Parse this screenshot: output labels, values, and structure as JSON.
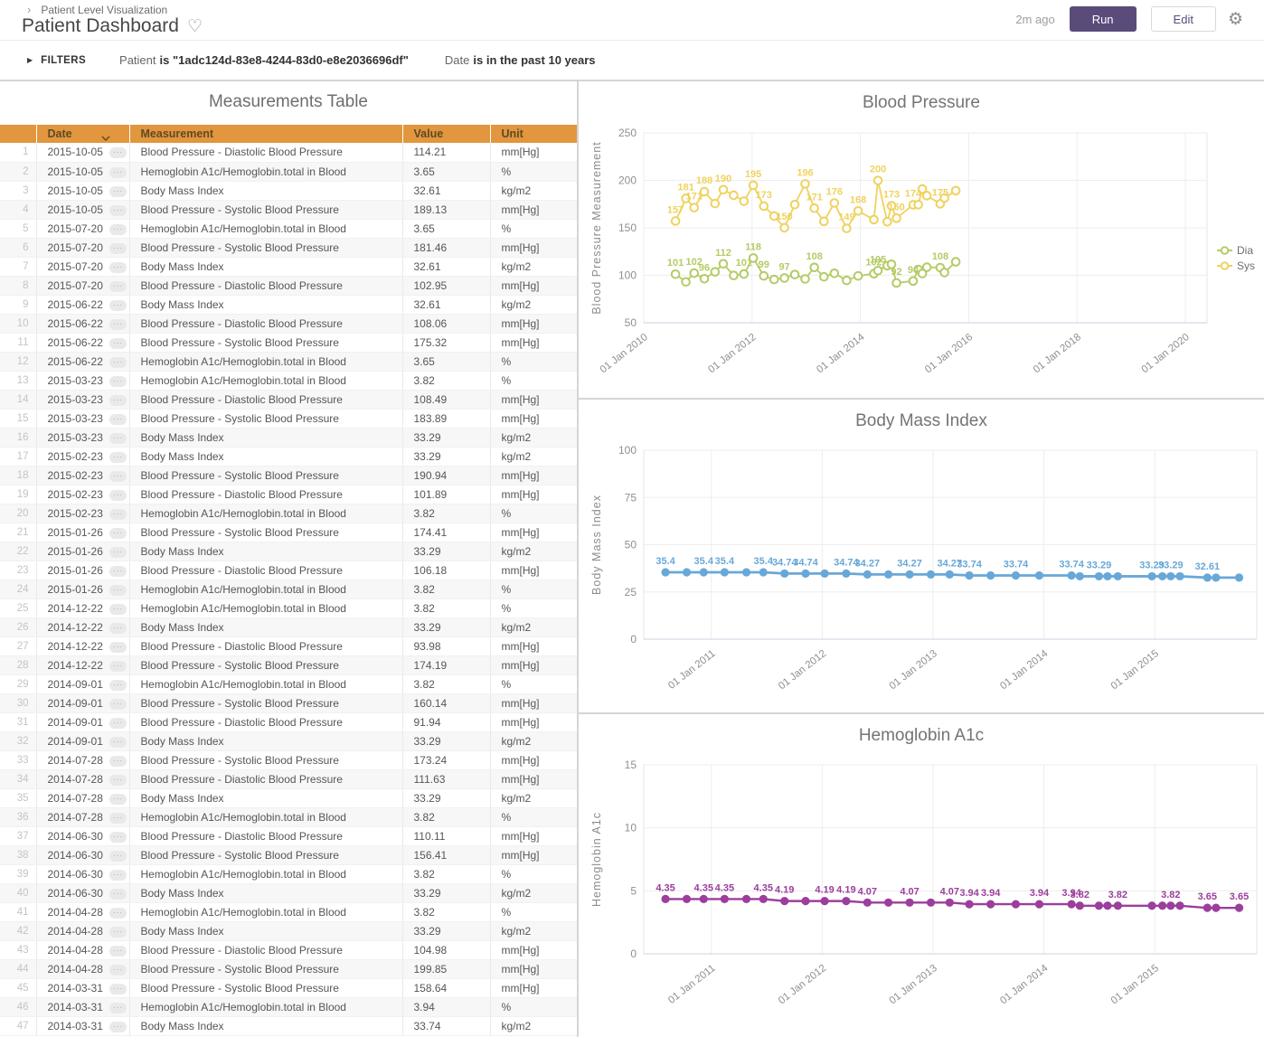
{
  "header": {
    "breadcrumb": "Patient Level Visualization",
    "title": "Patient Dashboard",
    "last_run": "2m ago",
    "run_label": "Run",
    "edit_label": "Edit"
  },
  "icons": {
    "breadcrumb_chevron": "›",
    "heart": "♡",
    "gear": "⚙",
    "filters_arrow": "▶",
    "row_menu": "···"
  },
  "filters": {
    "label": "FILTERS",
    "patient_label": "Patient",
    "patient_value": "is \"1adc124d-83e8-4244-83d0-e8e2036696df\"",
    "date_label": "Date",
    "date_value": "is in the past 10 years"
  },
  "colors": {
    "accent_purple": "#5A4B7B",
    "table_header_orange": "#E2963D",
    "sys_yellow": "#EFD25E",
    "dia_green": "#B4CB66",
    "bmi_blue": "#68A8D8",
    "a1c_purple": "#9C3E9C"
  },
  "table": {
    "title": "Measurements Table",
    "columns": [
      "Date",
      "Measurement",
      "Value",
      "Unit"
    ],
    "rows": [
      [
        1,
        "2015-10-05",
        "Blood Pressure - Diastolic Blood Pressure",
        "114.21",
        "mm[Hg]"
      ],
      [
        2,
        "2015-10-05",
        "Hemoglobin A1c/Hemoglobin.total in Blood",
        "3.65",
        "%"
      ],
      [
        3,
        "2015-10-05",
        "Body Mass Index",
        "32.61",
        "kg/m2"
      ],
      [
        4,
        "2015-10-05",
        "Blood Pressure - Systolic Blood Pressure",
        "189.13",
        "mm[Hg]"
      ],
      [
        5,
        "2015-07-20",
        "Hemoglobin A1c/Hemoglobin.total in Blood",
        "3.65",
        "%"
      ],
      [
        6,
        "2015-07-20",
        "Blood Pressure - Systolic Blood Pressure",
        "181.46",
        "mm[Hg]"
      ],
      [
        7,
        "2015-07-20",
        "Body Mass Index",
        "32.61",
        "kg/m2"
      ],
      [
        8,
        "2015-07-20",
        "Blood Pressure - Diastolic Blood Pressure",
        "102.95",
        "mm[Hg]"
      ],
      [
        9,
        "2015-06-22",
        "Body Mass Index",
        "32.61",
        "kg/m2"
      ],
      [
        10,
        "2015-06-22",
        "Blood Pressure - Diastolic Blood Pressure",
        "108.06",
        "mm[Hg]"
      ],
      [
        11,
        "2015-06-22",
        "Blood Pressure - Systolic Blood Pressure",
        "175.32",
        "mm[Hg]"
      ],
      [
        12,
        "2015-06-22",
        "Hemoglobin A1c/Hemoglobin.total in Blood",
        "3.65",
        "%"
      ],
      [
        13,
        "2015-03-23",
        "Hemoglobin A1c/Hemoglobin.total in Blood",
        "3.82",
        "%"
      ],
      [
        14,
        "2015-03-23",
        "Blood Pressure - Diastolic Blood Pressure",
        "108.49",
        "mm[Hg]"
      ],
      [
        15,
        "2015-03-23",
        "Blood Pressure - Systolic Blood Pressure",
        "183.89",
        "mm[Hg]"
      ],
      [
        16,
        "2015-03-23",
        "Body Mass Index",
        "33.29",
        "kg/m2"
      ],
      [
        17,
        "2015-02-23",
        "Body Mass Index",
        "33.29",
        "kg/m2"
      ],
      [
        18,
        "2015-02-23",
        "Blood Pressure - Systolic Blood Pressure",
        "190.94",
        "mm[Hg]"
      ],
      [
        19,
        "2015-02-23",
        "Blood Pressure - Diastolic Blood Pressure",
        "101.89",
        "mm[Hg]"
      ],
      [
        20,
        "2015-02-23",
        "Hemoglobin A1c/Hemoglobin.total in Blood",
        "3.82",
        "%"
      ],
      [
        21,
        "2015-01-26",
        "Blood Pressure - Systolic Blood Pressure",
        "174.41",
        "mm[Hg]"
      ],
      [
        22,
        "2015-01-26",
        "Body Mass Index",
        "33.29",
        "kg/m2"
      ],
      [
        23,
        "2015-01-26",
        "Blood Pressure - Diastolic Blood Pressure",
        "106.18",
        "mm[Hg]"
      ],
      [
        24,
        "2015-01-26",
        "Hemoglobin A1c/Hemoglobin.total in Blood",
        "3.82",
        "%"
      ],
      [
        25,
        "2014-12-22",
        "Hemoglobin A1c/Hemoglobin.total in Blood",
        "3.82",
        "%"
      ],
      [
        26,
        "2014-12-22",
        "Body Mass Index",
        "33.29",
        "kg/m2"
      ],
      [
        27,
        "2014-12-22",
        "Blood Pressure - Diastolic Blood Pressure",
        "93.98",
        "mm[Hg]"
      ],
      [
        28,
        "2014-12-22",
        "Blood Pressure - Systolic Blood Pressure",
        "174.19",
        "mm[Hg]"
      ],
      [
        29,
        "2014-09-01",
        "Hemoglobin A1c/Hemoglobin.total in Blood",
        "3.82",
        "%"
      ],
      [
        30,
        "2014-09-01",
        "Blood Pressure - Systolic Blood Pressure",
        "160.14",
        "mm[Hg]"
      ],
      [
        31,
        "2014-09-01",
        "Blood Pressure - Diastolic Blood Pressure",
        "91.94",
        "mm[Hg]"
      ],
      [
        32,
        "2014-09-01",
        "Body Mass Index",
        "33.29",
        "kg/m2"
      ],
      [
        33,
        "2014-07-28",
        "Blood Pressure - Systolic Blood Pressure",
        "173.24",
        "mm[Hg]"
      ],
      [
        34,
        "2014-07-28",
        "Blood Pressure - Diastolic Blood Pressure",
        "111.63",
        "mm[Hg]"
      ],
      [
        35,
        "2014-07-28",
        "Body Mass Index",
        "33.29",
        "kg/m2"
      ],
      [
        36,
        "2014-07-28",
        "Hemoglobin A1c/Hemoglobin.total in Blood",
        "3.82",
        "%"
      ],
      [
        37,
        "2014-06-30",
        "Blood Pressure - Diastolic Blood Pressure",
        "110.11",
        "mm[Hg]"
      ],
      [
        38,
        "2014-06-30",
        "Blood Pressure - Systolic Blood Pressure",
        "156.41",
        "mm[Hg]"
      ],
      [
        39,
        "2014-06-30",
        "Hemoglobin A1c/Hemoglobin.total in Blood",
        "3.82",
        "%"
      ],
      [
        40,
        "2014-06-30",
        "Body Mass Index",
        "33.29",
        "kg/m2"
      ],
      [
        41,
        "2014-04-28",
        "Hemoglobin A1c/Hemoglobin.total in Blood",
        "3.82",
        "%"
      ],
      [
        42,
        "2014-04-28",
        "Body Mass Index",
        "33.29",
        "kg/m2"
      ],
      [
        43,
        "2014-04-28",
        "Blood Pressure - Diastolic Blood Pressure",
        "104.98",
        "mm[Hg]"
      ],
      [
        44,
        "2014-04-28",
        "Blood Pressure - Systolic Blood Pressure",
        "199.85",
        "mm[Hg]"
      ],
      [
        45,
        "2014-03-31",
        "Blood Pressure - Systolic Blood Pressure",
        "158.64",
        "mm[Hg]"
      ],
      [
        46,
        "2014-03-31",
        "Hemoglobin A1c/Hemoglobin.total in Blood",
        "3.94",
        "%"
      ],
      [
        47,
        "2014-03-31",
        "Body Mass Index",
        "33.74",
        "kg/m2"
      ]
    ]
  },
  "chart_data": [
    {
      "type": "line",
      "title": "Blood Pressure",
      "ylabel": "Blood Pressure Measurement",
      "y_ticks": [
        250,
        200,
        150,
        100,
        50
      ],
      "ylim": [
        50,
        250
      ],
      "x_ticks": [
        {
          "year": 2010,
          "label": "01 Jan 2010"
        },
        {
          "year": 2012,
          "label": "01 Jan 2012"
        },
        {
          "year": 2014,
          "label": "01 Jan 2014"
        },
        {
          "year": 2016,
          "label": "01 Jan 2016"
        },
        {
          "year": 2018,
          "label": "01 Jan 2018"
        },
        {
          "year": 2020,
          "label": "01 Jan 2020"
        }
      ],
      "xlim": [
        2010,
        2020.4
      ],
      "grid": true,
      "marker": "open",
      "line_width": 1.8,
      "show_legend": true,
      "legend_position": "right",
      "x_dates": [
        "2010-08-02",
        "2010-10-11",
        "2010-12-06",
        "2011-02-14",
        "2011-04-25",
        "2011-06-20",
        "2011-08-29",
        "2011-11-07",
        "2012-01-09",
        "2012-03-19",
        "2012-05-28",
        "2012-08-06",
        "2012-10-15",
        "2012-12-24",
        "2013-02-25",
        "2013-04-29",
        "2013-07-08",
        "2013-09-30",
        "2013-12-16",
        "2014-03-31",
        "2014-04-28",
        "2014-06-30",
        "2014-07-28",
        "2014-09-01",
        "2014-12-22",
        "2015-01-26",
        "2015-02-23",
        "2015-03-23",
        "2015-06-22",
        "2015-07-20",
        "2015-10-05"
      ],
      "series": [
        {
          "name": "Dia",
          "color": "#B4CB66",
          "values": [
            101.2,
            93.1,
            102.3,
            96.4,
            103.6,
            112.1,
            99.8,
            101.4,
            118.2,
            99.4,
            95.6,
            97.1,
            100.8,
            96.2,
            108.3,
            98.4,
            102.1,
            94.6,
            99.3,
            101.72,
            104.98,
            110.11,
            111.63,
            91.94,
            93.98,
            106.18,
            101.89,
            108.49,
            108.06,
            102.95,
            114.21
          ],
          "point_labels": {
            "0": "101",
            "2": "102",
            "3": "96",
            "5": "112",
            "7": "101",
            "8": "118",
            "9": "99",
            "11": "97",
            "14": "108",
            "19": "102",
            "20": "105",
            "23": "92",
            "24": "94",
            "28": "108"
          }
        },
        {
          "name": "Sys",
          "color": "#EFD25E",
          "values": [
            157.2,
            181.0,
            171.3,
            188.1,
            175.6,
            190.2,
            184.3,
            178.1,
            194.8,
            172.9,
            162.4,
            150.1,
            174.5,
            196.3,
            170.7,
            156.8,
            176.2,
            149.4,
            167.8,
            158.64,
            199.85,
            156.41,
            173.24,
            160.14,
            174.19,
            174.41,
            190.94,
            183.89,
            175.32,
            181.46,
            189.13
          ],
          "point_labels": {
            "0": "157",
            "1": "181",
            "2": "171",
            "3": "188",
            "5": "190",
            "8": "195",
            "9": "173",
            "11": "150",
            "13": "196",
            "14": "171",
            "16": "176",
            "17": "149",
            "18": "168",
            "20": "200",
            "22": "173",
            "23": "160",
            "24": "174",
            "28": "175"
          }
        }
      ]
    },
    {
      "type": "line",
      "title": "Body Mass Index",
      "ylabel": "Body Mass Index",
      "y_ticks": [
        100,
        75,
        50,
        25,
        0
      ],
      "ylim": [
        0,
        100
      ],
      "x_ticks": [
        {
          "year": 2011,
          "label": "01 Jan 2011"
        },
        {
          "year": 2012,
          "label": "01 Jan 2012"
        },
        {
          "year": 2013,
          "label": "01 Jan 2013"
        },
        {
          "year": 2014,
          "label": "01 Jan 2014"
        },
        {
          "year": 2015,
          "label": "01 Jan 2015"
        }
      ],
      "xlim": [
        2010.39,
        2015.92
      ],
      "grid": true,
      "marker": "filled",
      "line_width": 2.8,
      "show_legend": false,
      "x_dates": [
        "2010-08-02",
        "2010-10-11",
        "2010-12-06",
        "2011-02-14",
        "2011-04-25",
        "2011-06-20",
        "2011-08-29",
        "2011-11-07",
        "2012-01-09",
        "2012-03-19",
        "2012-05-28",
        "2012-08-06",
        "2012-10-15",
        "2012-12-24",
        "2013-02-25",
        "2013-04-29",
        "2013-07-08",
        "2013-09-30",
        "2013-12-16",
        "2014-03-31",
        "2014-04-28",
        "2014-06-30",
        "2014-07-28",
        "2014-09-01",
        "2014-12-22",
        "2015-01-26",
        "2015-02-23",
        "2015-03-23",
        "2015-06-22",
        "2015-07-20",
        "2015-10-05"
      ],
      "series": [
        {
          "name": "Body Mass Index",
          "color": "#68A8D8",
          "values": [
            35.4,
            35.4,
            35.4,
            35.4,
            35.4,
            35.4,
            34.74,
            34.74,
            34.74,
            34.74,
            34.27,
            34.27,
            34.27,
            34.27,
            34.27,
            33.74,
            33.74,
            33.74,
            33.74,
            33.74,
            33.29,
            33.29,
            33.29,
            33.29,
            33.29,
            33.29,
            33.29,
            33.29,
            32.61,
            32.61,
            32.61
          ],
          "point_labels": {
            "0": "35.4",
            "2": "35.4",
            "3": "35.4",
            "5": "35.4",
            "6": "34.74",
            "7": "34.74",
            "9": "34.74",
            "10": "34.27",
            "12": "34.27",
            "14": "34.27",
            "15": "33.74",
            "17": "33.74",
            "19": "33.74",
            "21": "33.29",
            "24": "33.29",
            "26": "33.29",
            "28": "32.61"
          }
        }
      ]
    },
    {
      "type": "line",
      "title": "Hemoglobin A1c",
      "ylabel": "Hemoglobin A1c",
      "y_ticks": [
        15,
        10,
        5,
        0
      ],
      "ylim": [
        0,
        15
      ],
      "x_ticks": [
        {
          "year": 2011,
          "label": "01 Jan 2011"
        },
        {
          "year": 2012,
          "label": "01 Jan 2012"
        },
        {
          "year": 2013,
          "label": "01 Jan 2013"
        },
        {
          "year": 2014,
          "label": "01 Jan 2014"
        },
        {
          "year": 2015,
          "label": "01 Jan 2015"
        }
      ],
      "xlim": [
        2010.39,
        2015.92
      ],
      "grid": true,
      "marker": "filled",
      "line_width": 2.4,
      "show_legend": false,
      "x_dates": [
        "2010-08-02",
        "2010-10-11",
        "2010-12-06",
        "2011-02-14",
        "2011-04-25",
        "2011-06-20",
        "2011-08-29",
        "2011-11-07",
        "2012-01-09",
        "2012-03-19",
        "2012-05-28",
        "2012-08-06",
        "2012-10-15",
        "2012-12-24",
        "2013-02-25",
        "2013-04-29",
        "2013-07-08",
        "2013-09-30",
        "2013-12-16",
        "2014-03-31",
        "2014-04-28",
        "2014-06-30",
        "2014-07-28",
        "2014-09-01",
        "2014-12-22",
        "2015-01-26",
        "2015-02-23",
        "2015-03-23",
        "2015-06-22",
        "2015-07-20",
        "2015-10-05"
      ],
      "series": [
        {
          "name": "Hemoglobin A1c",
          "color": "#9C3E9C",
          "values": [
            4.35,
            4.35,
            4.35,
            4.35,
            4.35,
            4.35,
            4.19,
            4.19,
            4.19,
            4.19,
            4.07,
            4.07,
            4.07,
            4.07,
            4.07,
            3.94,
            3.94,
            3.94,
            3.94,
            3.94,
            3.82,
            3.82,
            3.82,
            3.82,
            3.82,
            3.82,
            3.82,
            3.82,
            3.65,
            3.65,
            3.65
          ],
          "point_labels": {
            "0": "4.35",
            "2": "4.35",
            "3": "4.35",
            "5": "4.35",
            "6": "4.19",
            "8": "4.19",
            "9": "4.19",
            "10": "4.07",
            "12": "4.07",
            "14": "4.07",
            "15": "3.94",
            "16": "3.94",
            "18": "3.94",
            "19": "3.94",
            "20": "3.82",
            "23": "3.82",
            "26": "3.82",
            "28": "3.65",
            "30": "3.65"
          }
        }
      ]
    }
  ]
}
